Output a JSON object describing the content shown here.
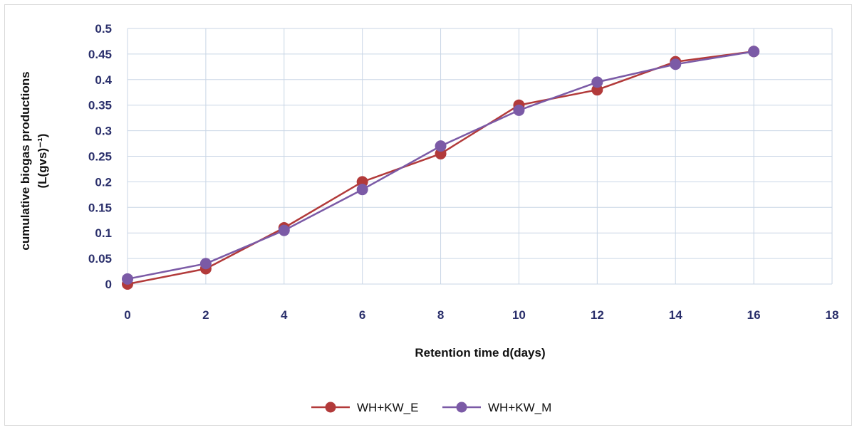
{
  "chart_data": {
    "type": "line",
    "xlabel": "Retention time d(days)",
    "ylabel_line1": "cumulative biogas productions",
    "ylabel_line2": "(L(gvs)⁻¹)",
    "xlim": [
      0,
      18
    ],
    "ylim": [
      0,
      0.5
    ],
    "x_ticks": [
      "0",
      "2",
      "4",
      "6",
      "8",
      "10",
      "12",
      "14",
      "16",
      "18"
    ],
    "y_ticks": [
      "0",
      "0.05",
      "0.1",
      "0.15",
      "0.2",
      "0.25",
      "0.3",
      "0.35",
      "0.4",
      "0.45",
      "0.5"
    ],
    "grid": true,
    "legend_position": "bottom",
    "series": [
      {
        "name": "WH+KW_E",
        "color": "#b23a3a",
        "x": [
          0,
          2,
          4,
          6,
          8,
          10,
          12,
          14,
          16
        ],
        "y": [
          0.0,
          0.03,
          0.11,
          0.2,
          0.255,
          0.35,
          0.38,
          0.435,
          0.455
        ]
      },
      {
        "name": "WH+KW_M",
        "color": "#7b5aa6",
        "x": [
          0,
          2,
          4,
          6,
          8,
          10,
          12,
          14,
          16
        ],
        "y": [
          0.01,
          0.04,
          0.105,
          0.185,
          0.27,
          0.34,
          0.395,
          0.43,
          0.455
        ]
      }
    ]
  }
}
